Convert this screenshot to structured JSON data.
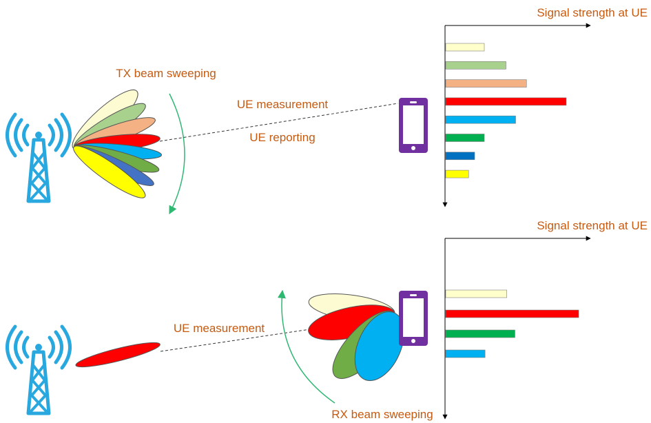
{
  "labels": {
    "tx_beam_sweeping": "TX beam sweeping",
    "ue_measurement": "UE measurement",
    "ue_reporting": "UE reporting",
    "signal_strength_top": "Signal strength at UE",
    "signal_strength_bottom": "Signal strength at UE",
    "ue_measurement_bottom": "UE measurement",
    "rx_beam_sweeping": "RX beam sweeping"
  },
  "colors": {
    "label": "#c55a11",
    "tower": "#29a8e0",
    "phone": "#7030a0",
    "sweep_arrow": "#2eb872",
    "axis": "#000000"
  },
  "beams": {
    "light_yellow": "#fdfbd2",
    "light_green": "#a9d18e",
    "peach": "#f4b183",
    "red": "#ff0000",
    "light_blue": "#00b0f0",
    "green": "#70ad47",
    "blue": "#4472c4",
    "yellow": "#ffff00"
  },
  "chart_data": [
    {
      "type": "bar",
      "title": "Signal strength at UE",
      "orientation": "horizontal",
      "series_colors": [
        "#ffffcc",
        "#a9d18e",
        "#f4b183",
        "#ff0000",
        "#00b0f0",
        "#00b050",
        "#0070c0",
        "#ffff00"
      ],
      "values": [
        0.32,
        0.5,
        0.67,
        1.0,
        0.58,
        0.32,
        0.24,
        0.19
      ]
    },
    {
      "type": "bar",
      "title": "Signal strength at UE",
      "orientation": "horizontal",
      "series_colors": [
        "#ffffcc",
        "#ff0000",
        "#00b050",
        "#00b0f0"
      ],
      "values": [
        0.45,
        0.98,
        0.51,
        0.29
      ]
    }
  ]
}
